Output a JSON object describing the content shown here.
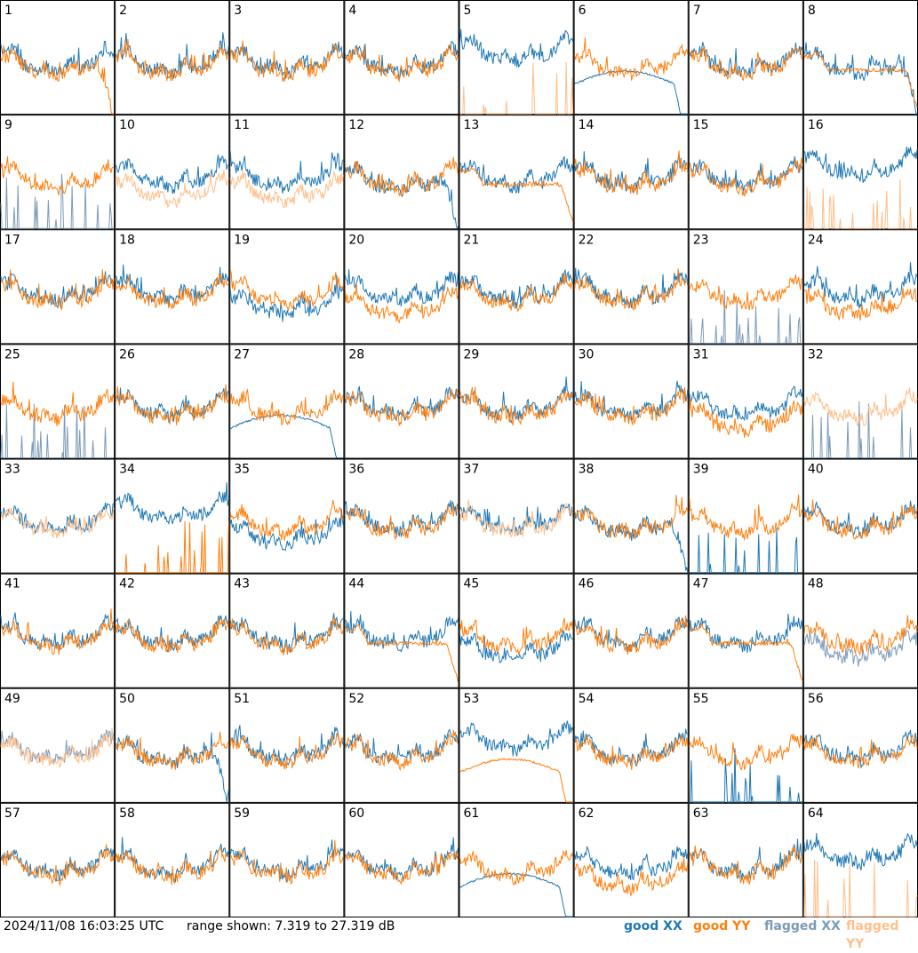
{
  "footer": {
    "timestamp": "2024/11/08 16:03:25 UTC",
    "range": "range shown: 7.319 to 27.319 dB",
    "legend": [
      {
        "label": "good XX",
        "color": "#1f77b4"
      },
      {
        "label": "good YY",
        "color": "#ff7f0e"
      },
      {
        "label": "flagged XX",
        "color": "#7d9bb8"
      },
      {
        "label": "flagged YY",
        "color": "#ffbf8a"
      }
    ]
  },
  "chart_data": {
    "type": "line",
    "title": "",
    "units": "dB",
    "ylim": [
      7.319,
      27.319
    ],
    "grid_layout": "8x8",
    "panels": [
      {
        "label": "1",
        "xx": "good",
        "yy": "good",
        "xx_shape": "normal",
        "yy_shape": "droop"
      },
      {
        "label": "2",
        "xx": "good",
        "yy": "good",
        "xx_shape": "normal",
        "yy_shape": "normal"
      },
      {
        "label": "3",
        "xx": "good",
        "yy": "good",
        "xx_shape": "normal",
        "yy_shape": "normal"
      },
      {
        "label": "4",
        "xx": "good",
        "yy": "good",
        "xx_shape": "normal",
        "yy_shape": "normal"
      },
      {
        "label": "5",
        "xx": "good",
        "yy": "flagged",
        "xx_shape": "high",
        "yy_shape": "spikes"
      },
      {
        "label": "6",
        "xx": "good",
        "yy": "good",
        "xx_shape": "smooth",
        "yy_shape": "normal"
      },
      {
        "label": "7",
        "xx": "good",
        "yy": "good",
        "xx_shape": "normal",
        "yy_shape": "normal"
      },
      {
        "label": "8",
        "xx": "good",
        "yy": "good",
        "xx_shape": "droop",
        "yy_shape": "flat"
      },
      {
        "label": "9",
        "xx": "flagged",
        "yy": "good",
        "xx_shape": "spikes",
        "yy_shape": "normal"
      },
      {
        "label": "10",
        "xx": "good",
        "yy": "flagged",
        "xx_shape": "normal",
        "yy_shape": "low"
      },
      {
        "label": "11",
        "xx": "good",
        "yy": "flagged",
        "xx_shape": "normal",
        "yy_shape": "low"
      },
      {
        "label": "12",
        "xx": "good",
        "yy": "good",
        "xx_shape": "droop",
        "yy_shape": "normal"
      },
      {
        "label": "13",
        "xx": "good",
        "yy": "good",
        "xx_shape": "normal",
        "yy_shape": "flat"
      },
      {
        "label": "14",
        "xx": "good",
        "yy": "good",
        "xx_shape": "normal",
        "yy_shape": "normal"
      },
      {
        "label": "15",
        "xx": "good",
        "yy": "good",
        "xx_shape": "normal",
        "yy_shape": "normal"
      },
      {
        "label": "16",
        "xx": "good",
        "yy": "flagged",
        "xx_shape": "high",
        "yy_shape": "spikes"
      },
      {
        "label": "17",
        "xx": "good",
        "yy": "good",
        "xx_shape": "normal",
        "yy_shape": "normal"
      },
      {
        "label": "18",
        "xx": "good",
        "yy": "good",
        "xx_shape": "normal",
        "yy_shape": "normal"
      },
      {
        "label": "19",
        "xx": "good",
        "yy": "good",
        "xx_shape": "low",
        "yy_shape": "normal"
      },
      {
        "label": "20",
        "xx": "good",
        "yy": "good",
        "xx_shape": "normal",
        "yy_shape": "low"
      },
      {
        "label": "21",
        "xx": "good",
        "yy": "good",
        "xx_shape": "normal",
        "yy_shape": "normal"
      },
      {
        "label": "22",
        "xx": "good",
        "yy": "good",
        "xx_shape": "normal",
        "yy_shape": "normal"
      },
      {
        "label": "23",
        "xx": "flagged",
        "yy": "good",
        "xx_shape": "spikes",
        "yy_shape": "normal"
      },
      {
        "label": "24",
        "xx": "good",
        "yy": "good",
        "xx_shape": "normal",
        "yy_shape": "low"
      },
      {
        "label": "25",
        "xx": "flagged",
        "yy": "good",
        "xx_shape": "spikes",
        "yy_shape": "normal"
      },
      {
        "label": "26",
        "xx": "good",
        "yy": "good",
        "xx_shape": "normal",
        "yy_shape": "normal"
      },
      {
        "label": "27",
        "xx": "good",
        "yy": "good",
        "xx_shape": "smooth",
        "yy_shape": "normal"
      },
      {
        "label": "28",
        "xx": "good",
        "yy": "good",
        "xx_shape": "normal",
        "yy_shape": "normal"
      },
      {
        "label": "29",
        "xx": "good",
        "yy": "good",
        "xx_shape": "normal",
        "yy_shape": "normal"
      },
      {
        "label": "30",
        "xx": "good",
        "yy": "good",
        "xx_shape": "normal",
        "yy_shape": "normal"
      },
      {
        "label": "31",
        "xx": "good",
        "yy": "good",
        "xx_shape": "normal",
        "yy_shape": "low"
      },
      {
        "label": "32",
        "xx": "flagged",
        "yy": "flagged",
        "xx_shape": "spikes",
        "yy_shape": "normal"
      },
      {
        "label": "33",
        "xx": "good",
        "yy": "flagged",
        "xx_shape": "normal",
        "yy_shape": "normal"
      },
      {
        "label": "34",
        "xx": "good",
        "yy": "good",
        "xx_shape": "high",
        "yy_shape": "spikes"
      },
      {
        "label": "35",
        "xx": "good",
        "yy": "good",
        "xx_shape": "low",
        "yy_shape": "normal"
      },
      {
        "label": "36",
        "xx": "good",
        "yy": "good",
        "xx_shape": "normal",
        "yy_shape": "normal"
      },
      {
        "label": "37",
        "xx": "good",
        "yy": "flagged",
        "xx_shape": "normal",
        "yy_shape": "normal"
      },
      {
        "label": "38",
        "xx": "good",
        "yy": "good",
        "xx_shape": "droop",
        "yy_shape": "normal"
      },
      {
        "label": "39",
        "xx": "good",
        "yy": "good",
        "xx_shape": "spikes",
        "yy_shape": "normal"
      },
      {
        "label": "40",
        "xx": "good",
        "yy": "good",
        "xx_shape": "normal",
        "yy_shape": "normal"
      },
      {
        "label": "41",
        "xx": "good",
        "yy": "good",
        "xx_shape": "normal",
        "yy_shape": "normal"
      },
      {
        "label": "42",
        "xx": "good",
        "yy": "good",
        "xx_shape": "normal",
        "yy_shape": "normal"
      },
      {
        "label": "43",
        "xx": "good",
        "yy": "good",
        "xx_shape": "normal",
        "yy_shape": "normal"
      },
      {
        "label": "44",
        "xx": "good",
        "yy": "good",
        "xx_shape": "normal",
        "yy_shape": "flat"
      },
      {
        "label": "45",
        "xx": "good",
        "yy": "good",
        "xx_shape": "low",
        "yy_shape": "normal"
      },
      {
        "label": "46",
        "xx": "good",
        "yy": "good",
        "xx_shape": "normal",
        "yy_shape": "normal"
      },
      {
        "label": "47",
        "xx": "good",
        "yy": "good",
        "xx_shape": "normal",
        "yy_shape": "flat"
      },
      {
        "label": "48",
        "xx": "flagged",
        "yy": "good",
        "xx_shape": "low",
        "yy_shape": "normal"
      },
      {
        "label": "49",
        "xx": "flagged",
        "yy": "flagged",
        "xx_shape": "normal",
        "yy_shape": "normal"
      },
      {
        "label": "50",
        "xx": "good",
        "yy": "good",
        "xx_shape": "droop",
        "yy_shape": "normal"
      },
      {
        "label": "51",
        "xx": "good",
        "yy": "good",
        "xx_shape": "normal",
        "yy_shape": "normal"
      },
      {
        "label": "52",
        "xx": "good",
        "yy": "good",
        "xx_shape": "normal",
        "yy_shape": "normal"
      },
      {
        "label": "53",
        "xx": "good",
        "yy": "good",
        "xx_shape": "high",
        "yy_shape": "smooth"
      },
      {
        "label": "54",
        "xx": "good",
        "yy": "good",
        "xx_shape": "normal",
        "yy_shape": "normal"
      },
      {
        "label": "55",
        "xx": "good",
        "yy": "good",
        "xx_shape": "spikes",
        "yy_shape": "normal"
      },
      {
        "label": "56",
        "xx": "good",
        "yy": "good",
        "xx_shape": "normal",
        "yy_shape": "normal"
      },
      {
        "label": "57",
        "xx": "good",
        "yy": "good",
        "xx_shape": "normal",
        "yy_shape": "normal"
      },
      {
        "label": "58",
        "xx": "good",
        "yy": "good",
        "xx_shape": "normal",
        "yy_shape": "normal"
      },
      {
        "label": "59",
        "xx": "good",
        "yy": "good",
        "xx_shape": "normal",
        "yy_shape": "normal"
      },
      {
        "label": "60",
        "xx": "good",
        "yy": "good",
        "xx_shape": "normal",
        "yy_shape": "normal"
      },
      {
        "label": "61",
        "xx": "good",
        "yy": "good",
        "xx_shape": "smooth",
        "yy_shape": "normal"
      },
      {
        "label": "62",
        "xx": "good",
        "yy": "good",
        "xx_shape": "normal",
        "yy_shape": "low"
      },
      {
        "label": "63",
        "xx": "good",
        "yy": "good",
        "xx_shape": "normal",
        "yy_shape": "normal"
      },
      {
        "label": "64",
        "xx": "good",
        "yy": "flagged",
        "xx_shape": "high",
        "yy_shape": "spikes"
      }
    ]
  }
}
